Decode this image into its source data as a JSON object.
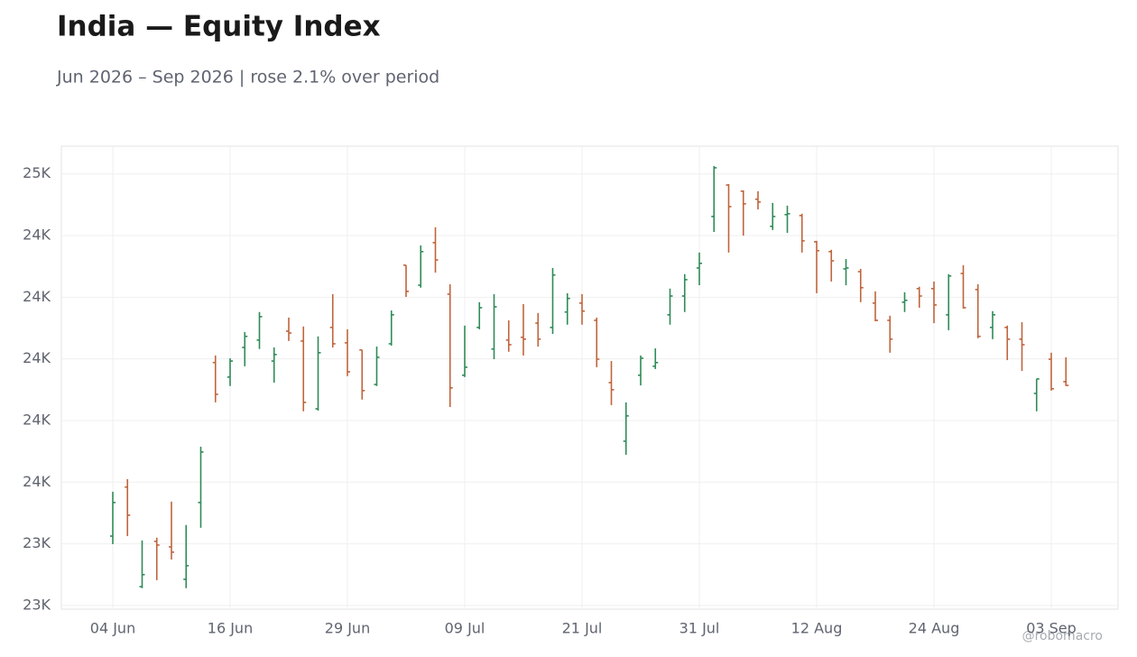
{
  "chart_data": {
    "type": "ohlc",
    "title": "India — Equity Index",
    "subtitle": "Jun 2026 – Sep 2026 | rose 2.1% over period",
    "watermark": "@robomacro",
    "up_color": "#2e8b57",
    "down_color": "#c0643c",
    "grid": true,
    "categories": [
      "04 Jun",
      null,
      null,
      null,
      null,
      null,
      null,
      null,
      "16 Jun",
      null,
      null,
      null,
      null,
      null,
      null,
      null,
      "29 Jun",
      null,
      null,
      null,
      null,
      null,
      null,
      null,
      "09 Jul",
      null,
      null,
      null,
      null,
      null,
      null,
      null,
      "21 Jul",
      null,
      null,
      null,
      null,
      null,
      null,
      null,
      "31 Jul",
      null,
      null,
      null,
      null,
      null,
      null,
      null,
      "12 Aug",
      null,
      null,
      null,
      null,
      null,
      null,
      null,
      "24 Aug",
      null,
      null,
      null,
      null,
      null,
      null,
      null,
      "03 Sep",
      null
    ],
    "open": [
      23425,
      23584,
      23261,
      23408,
      23390,
      23285,
      23534,
      23988,
      23941,
      24037,
      24061,
      23993,
      24090,
      24058,
      23838,
      24102,
      24052,
      24029,
      23917,
      24049,
      24304,
      24239,
      24377,
      24210,
      23947,
      24102,
      24032,
      24061,
      24070,
      24116,
      24102,
      24152,
      24181,
      24125,
      23923,
      23733,
      23947,
      23976,
      24143,
      24204,
      24295,
      24462,
      24564,
      24544,
      24518,
      24430,
      24468,
      24465,
      24380,
      24348,
      24292,
      24283,
      24181,
      24125,
      24184,
      24228,
      24228,
      24143,
      24277,
      24225,
      24102,
      24102,
      24064,
      23888,
      23999,
      23926
    ],
    "high": [
      23569,
      23610,
      23411,
      23420,
      23537,
      23461,
      23715,
      24011,
      24002,
      24087,
      24152,
      24037,
      24134,
      24105,
      24073,
      24210,
      24096,
      24029,
      24040,
      24157,
      24304,
      24368,
      24427,
      24242,
      24108,
      24184,
      24210,
      24125,
      24178,
      24149,
      24295,
      24213,
      24210,
      24134,
      23993,
      23859,
      24011,
      24034,
      24228,
      24275,
      24345,
      24626,
      24567,
      24547,
      24544,
      24506,
      24497,
      24471,
      24383,
      24354,
      24324,
      24292,
      24219,
      24140,
      24216,
      24234,
      24251,
      24275,
      24304,
      24242,
      24155,
      24108,
      24119,
      23935,
      24020,
      24005
    ],
    "low": [
      23399,
      23425,
      23256,
      23282,
      23349,
      23256,
      23452,
      23859,
      23912,
      23976,
      24032,
      23923,
      24058,
      23830,
      23832,
      24037,
      23944,
      23868,
      23912,
      24043,
      24201,
      24231,
      24280,
      23844,
      23941,
      24096,
      23999,
      24023,
      24011,
      24040,
      24081,
      24111,
      24111,
      23973,
      23850,
      23689,
      23914,
      23967,
      24111,
      24152,
      24239,
      24412,
      24345,
      24400,
      24485,
      24418,
      24409,
      24345,
      24213,
      24251,
      24239,
      24184,
      24122,
      24020,
      24152,
      24166,
      24116,
      24093,
      24163,
      24067,
      24064,
      23996,
      23961,
      23830,
      23897,
      23912
    ],
    "close": [
      23534,
      23493,
      23300,
      23396,
      23373,
      23329,
      23698,
      23885,
      23993,
      24073,
      24137,
      24014,
      24084,
      23859,
      24020,
      24049,
      23958,
      23897,
      24005,
      24143,
      24219,
      24348,
      24321,
      23906,
      23973,
      24166,
      24169,
      24046,
      24064,
      24064,
      24272,
      24196,
      24155,
      23999,
      23900,
      23815,
      24002,
      23988,
      24204,
      24257,
      24310,
      24620,
      24494,
      24503,
      24509,
      24462,
      24471,
      24383,
      24351,
      24318,
      24295,
      24231,
      24125,
      24064,
      24190,
      24204,
      24175,
      24269,
      24166,
      24073,
      24143,
      24064,
      24046,
      23935,
      23903,
      23914
    ],
    "ylim": [
      23188,
      24690
    ],
    "yticks": [
      {
        "value": 23200,
        "label": "23K"
      },
      {
        "value": 23400,
        "label": "23K"
      },
      {
        "value": 23600,
        "label": "24K"
      },
      {
        "value": 23800,
        "label": "24K"
      },
      {
        "value": 24000,
        "label": "24K"
      },
      {
        "value": 24200,
        "label": "24K"
      },
      {
        "value": 24400,
        "label": "24K"
      },
      {
        "value": 24600,
        "label": "25K"
      }
    ]
  }
}
